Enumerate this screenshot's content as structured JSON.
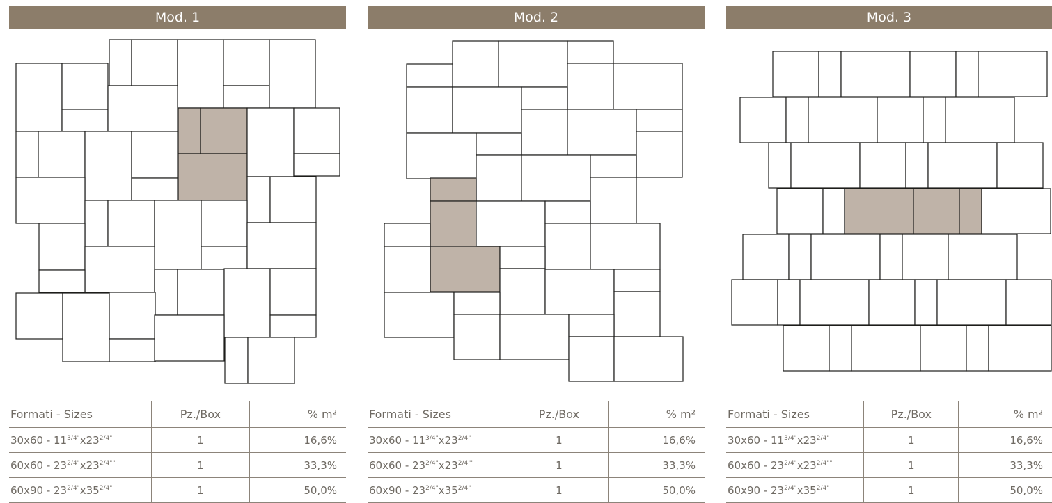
{
  "panels": [
    {
      "title": "Mod. 1",
      "highlight_color": "#bfb3a8"
    },
    {
      "title": "Mod. 2",
      "highlight_color": "#bfb3a8"
    },
    {
      "title": "Mod. 3",
      "highlight_color": "#bfb3a8"
    }
  ],
  "colors": {
    "header": "#8c7d6a",
    "tile_stroke": "#1d1d1b",
    "highlight": "#bfb3a8",
    "text": "#6f6a63"
  },
  "table": {
    "headers": {
      "sizes": "Formati - Sizes",
      "pcs": "Pz./Box",
      "pct": "% m²"
    },
    "rows": [
      {
        "metric": "30x60",
        "inch_a": "11",
        "inch_a_frac": "3/4\"",
        "inch_b": "23",
        "inch_b_frac": "2/4\"",
        "pcs": "1",
        "pct": "16,6%"
      },
      {
        "metric": "60x60",
        "inch_a": "23",
        "inch_a_frac": "2/4\"",
        "inch_b": "23",
        "inch_b_frac": "2/4\"\"",
        "pcs": "1",
        "pct": "33,3%"
      },
      {
        "metric": "60x90",
        "inch_a": "23",
        "inch_a_frac": "2/4\"",
        "inch_b": "35",
        "inch_b_frac": "2/4\"",
        "pcs": "1",
        "pct": "50,0%"
      }
    ]
  }
}
